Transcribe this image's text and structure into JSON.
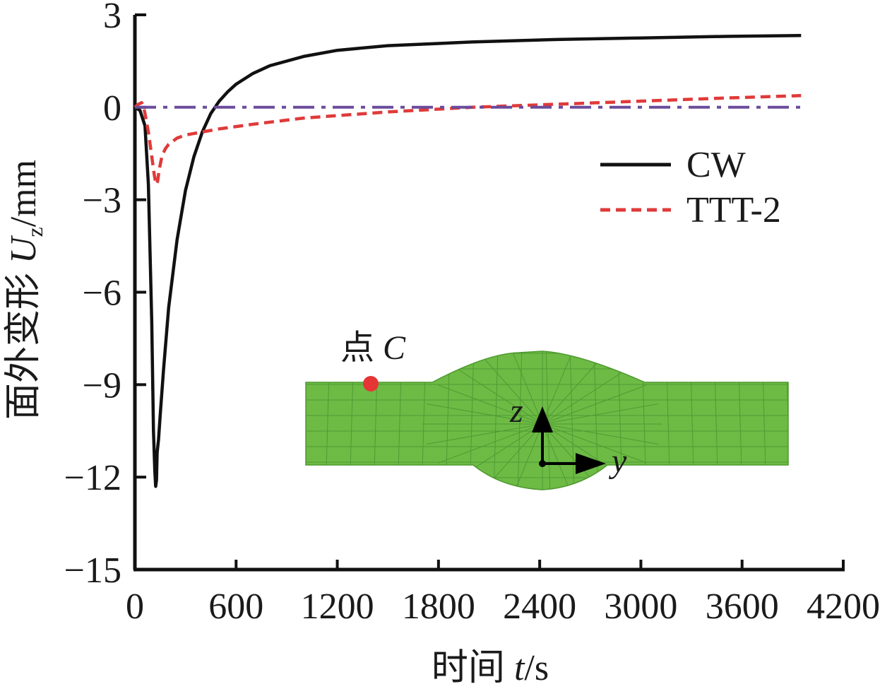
{
  "chart_data": {
    "type": "line",
    "title": "",
    "xlabel_prefix": "时间 ",
    "xlabel_var": "t",
    "xlabel_unit": "/s",
    "ylabel_prefix": "面外变形 ",
    "ylabel_var": "U",
    "ylabel_sub": "z",
    "ylabel_unit": "/mm",
    "xlim": [
      0,
      4200
    ],
    "ylim": [
      -15,
      3
    ],
    "xticks": [
      0,
      600,
      1200,
      1800,
      2400,
      3000,
      3600,
      4200
    ],
    "yticks": [
      3,
      0,
      -3,
      -6,
      -9,
      -12,
      -15
    ],
    "xtick_labels": [
      "0",
      "600",
      "1200",
      "1800",
      "2400",
      "3000",
      "3600",
      "4200"
    ],
    "ytick_labels": [
      "3",
      "0",
      "−3",
      "−6",
      "−9",
      "−12",
      "−15"
    ],
    "legend_position": "right-middle",
    "series": [
      {
        "name": "CW",
        "color": "#111111",
        "style": "solid",
        "x": [
          0,
          30,
          60,
          80,
          100,
          110,
          118,
          123,
          128,
          132,
          140,
          150,
          170,
          200,
          250,
          300,
          350,
          400,
          450,
          500,
          550,
          600,
          700,
          800,
          1000,
          1200,
          1500,
          2000,
          2500,
          3000,
          3500,
          3950
        ],
        "y": [
          0,
          -0.1,
          -0.6,
          -2.5,
          -7.0,
          -10.5,
          -11.8,
          -12.3,
          -12.1,
          -11.2,
          -10.8,
          -10.0,
          -8.5,
          -6.5,
          -4.3,
          -2.7,
          -1.6,
          -0.8,
          -0.2,
          0.2,
          0.5,
          0.75,
          1.1,
          1.35,
          1.65,
          1.85,
          2.0,
          2.12,
          2.2,
          2.25,
          2.3,
          2.33
        ]
      },
      {
        "name": "TTT-2",
        "color": "#e03a3a",
        "style": "dashed",
        "x": [
          0,
          20,
          40,
          50,
          60,
          80,
          100,
          115,
          125,
          135,
          145,
          160,
          180,
          200,
          250,
          300,
          400,
          500,
          700,
          1000,
          1500,
          2000,
          2500,
          3000,
          3500,
          3950
        ],
        "y": [
          0,
          0.1,
          0.15,
          0.05,
          -0.2,
          -0.8,
          -1.6,
          -2.2,
          -2.5,
          -2.4,
          -2.0,
          -1.6,
          -1.35,
          -1.2,
          -1.0,
          -0.9,
          -0.8,
          -0.7,
          -0.55,
          -0.35,
          -0.15,
          0.0,
          0.1,
          0.2,
          0.3,
          0.38
        ]
      },
      {
        "name": "zero-line",
        "color": "#6a4c9c",
        "style": "dashdot",
        "x": [
          0,
          3950
        ],
        "y": [
          0,
          0
        ]
      }
    ],
    "annotations": {
      "point_label_prefix": "点 ",
      "point_label_var": "C",
      "axis_z": "z",
      "axis_y": "y"
    }
  }
}
